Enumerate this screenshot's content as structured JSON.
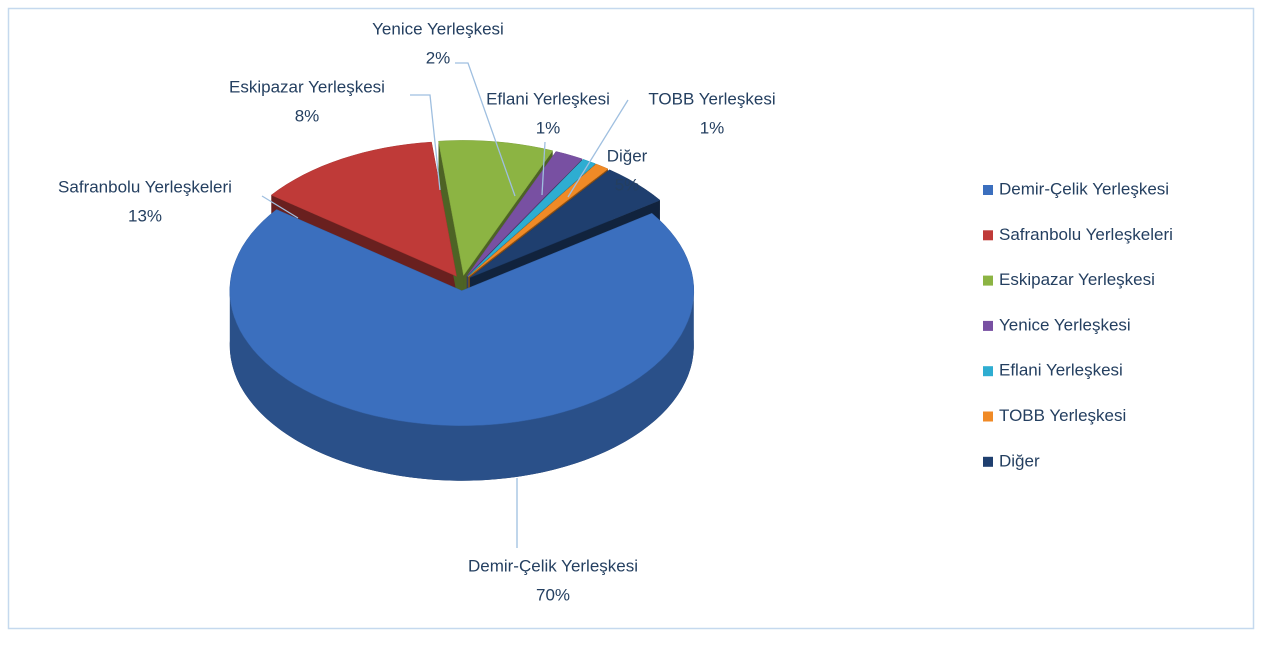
{
  "chart_data": {
    "type": "pie",
    "categories": [
      "Demir-Çelik Yerleşkesi",
      "Safranbolu Yerleşkeleri",
      "Eskipazar  Yerleşkesi",
      "Yenice  Yerleşkesi",
      "Eflani Yerleşkesi",
      "TOBB Yerleşkesi",
      "Diğer"
    ],
    "values": [
      70,
      13,
      8,
      2,
      1,
      1,
      5
    ],
    "value_labels": [
      "70%",
      "13%",
      "8%",
      "2%",
      "1%",
      "1%",
      "5%"
    ],
    "colors": [
      "#3b6fbe",
      "#bf3a38",
      "#8cb443",
      "#7850a2",
      "#2eadd1",
      "#f08a26",
      "#1f3f6f"
    ],
    "legend": "right"
  }
}
